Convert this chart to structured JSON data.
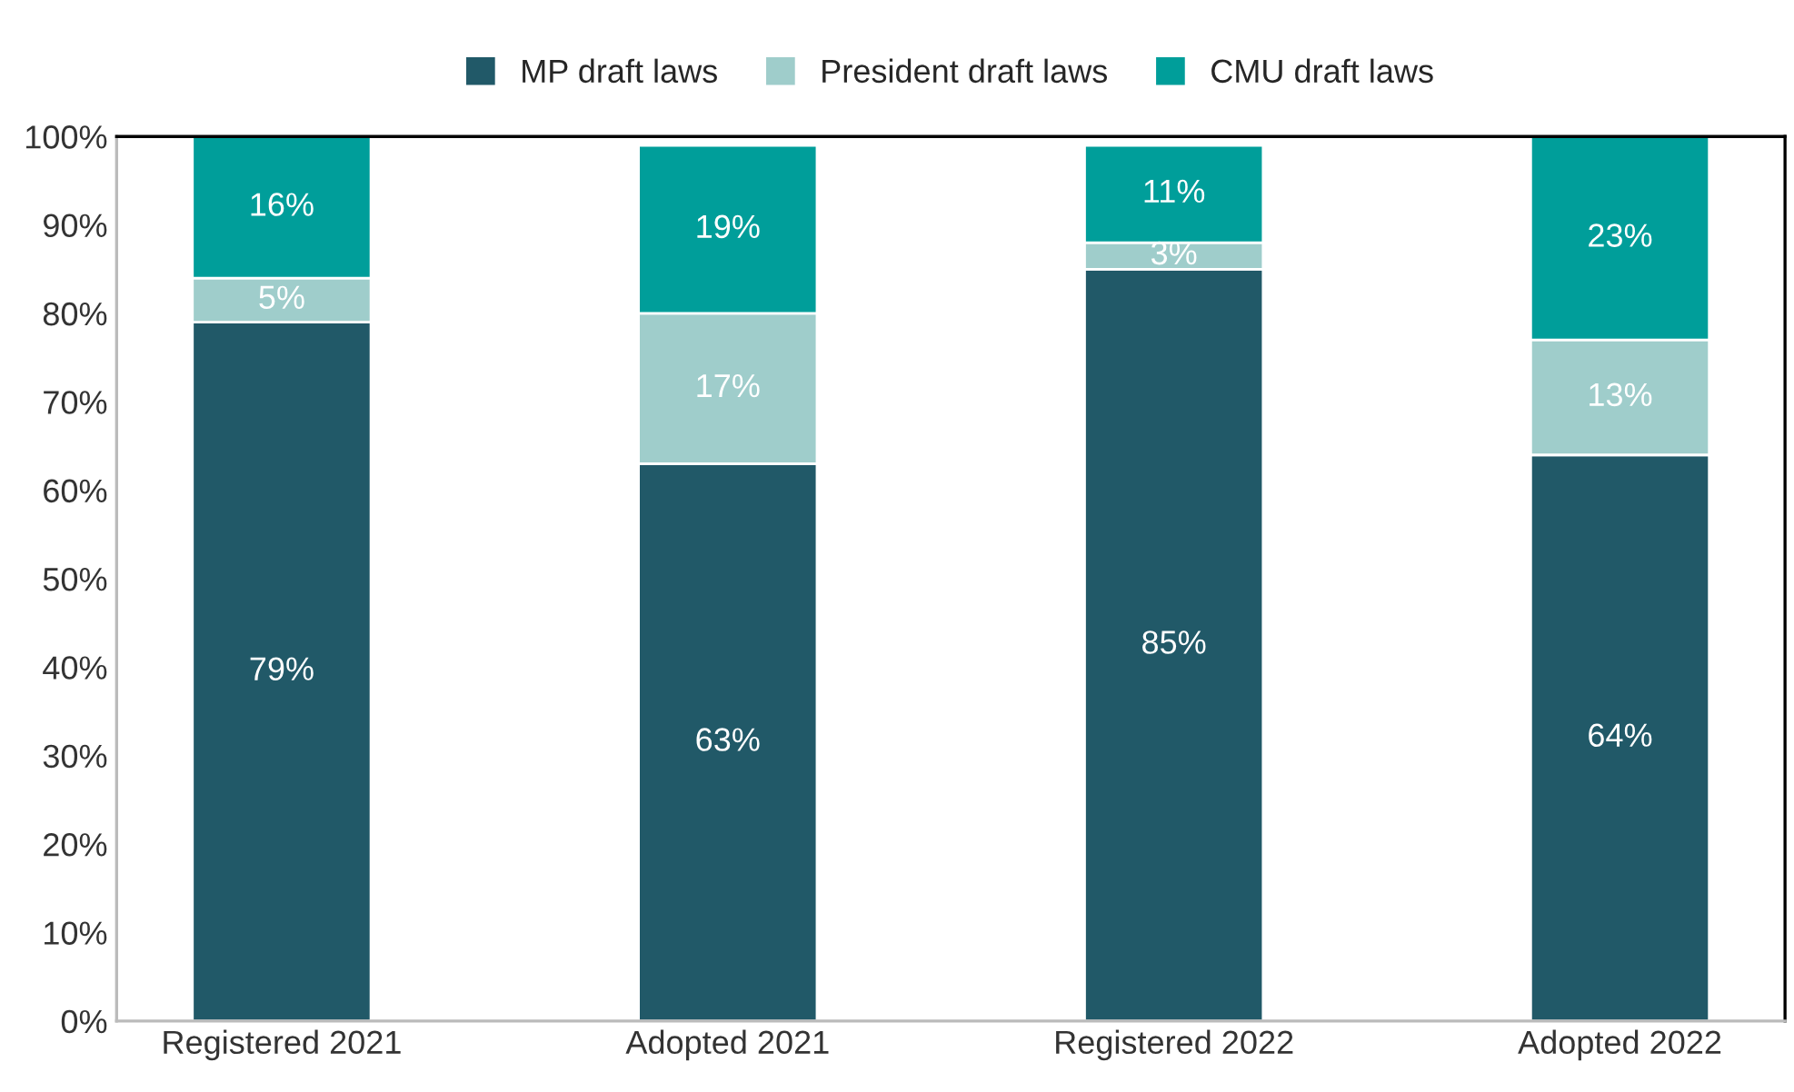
{
  "chart_data": {
    "type": "bar",
    "stacked": true,
    "categories": [
      "Registered 2021",
      "Adopted 2021",
      "Registered 2022",
      "Adopted 2022"
    ],
    "series": [
      {
        "name": "MP draft laws",
        "color": "#215968",
        "values": [
          79,
          63,
          85,
          64
        ],
        "value_labels": [
          "79%",
          "63%",
          "85%",
          "64%"
        ]
      },
      {
        "name": "President draft laws",
        "color": "#9fcdcb",
        "values": [
          5,
          17,
          3,
          13
        ],
        "value_labels": [
          "5%",
          "17%",
          "3%",
          "13%"
        ]
      },
      {
        "name": "CMU draft laws",
        "color": "#009e9a",
        "values": [
          16,
          19,
          11,
          23
        ],
        "value_labels": [
          "16%",
          "19%",
          "11%",
          "23%"
        ]
      }
    ],
    "ylim": [
      0,
      100
    ],
    "yticks": [
      {
        "value": 0,
        "label": "0%"
      },
      {
        "value": 10,
        "label": "10%"
      },
      {
        "value": 20,
        "label": "20%"
      },
      {
        "value": 30,
        "label": "30%"
      },
      {
        "value": 40,
        "label": "40%"
      },
      {
        "value": 50,
        "label": "50%"
      },
      {
        "value": 60,
        "label": "60%"
      },
      {
        "value": 70,
        "label": "70%"
      },
      {
        "value": 80,
        "label": "80%"
      },
      {
        "value": 90,
        "label": "90%"
      },
      {
        "value": 100,
        "label": "100%"
      }
    ],
    "grid": false,
    "legend": "top"
  }
}
